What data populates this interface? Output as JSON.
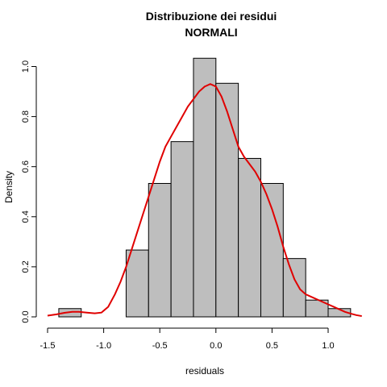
{
  "chart_data": {
    "type": "bar",
    "title_lines": [
      "Distribuzione dei residui",
      "NORMALI"
    ],
    "xlabel": "residuals",
    "ylabel": "Density",
    "xlim": [
      -1.5,
      1.3
    ],
    "ylim": [
      0,
      1.04
    ],
    "x_ticks": [
      -1.5,
      -1.0,
      -0.5,
      0.0,
      0.5,
      1.0
    ],
    "x_tick_labels": [
      "-1.5",
      "-1.0",
      "-0.5",
      "0.0",
      "0.5",
      "1.0"
    ],
    "y_ticks": [
      0.0,
      0.2,
      0.4,
      0.6,
      0.8,
      1.0
    ],
    "y_tick_labels": [
      "0.0",
      "0.2",
      "0.4",
      "0.6",
      "0.8",
      "1.0"
    ],
    "bin_edges": [
      -1.4,
      -1.2,
      -1.0,
      -0.8,
      -0.6,
      -0.4,
      -0.2,
      0.0,
      0.2,
      0.4,
      0.6,
      0.8,
      1.0,
      1.2
    ],
    "density": [
      0.033,
      0.0,
      0.0,
      0.267,
      0.533,
      0.7,
      1.033,
      0.933,
      0.633,
      0.533,
      0.233,
      0.067,
      0.033
    ],
    "bar_fill": "#bebebe",
    "bar_stroke": "#000000",
    "density_curve": {
      "color": "#e00000",
      "x": [
        -1.5,
        -1.42,
        -1.35,
        -1.28,
        -1.22,
        -1.15,
        -1.08,
        -1.02,
        -0.96,
        -0.9,
        -0.85,
        -0.8,
        -0.75,
        -0.7,
        -0.65,
        -0.6,
        -0.55,
        -0.5,
        -0.45,
        -0.4,
        -0.35,
        -0.3,
        -0.25,
        -0.2,
        -0.15,
        -0.1,
        -0.05,
        0.0,
        0.05,
        0.1,
        0.15,
        0.2,
        0.25,
        0.3,
        0.35,
        0.4,
        0.45,
        0.5,
        0.55,
        0.6,
        0.65,
        0.7,
        0.75,
        0.8,
        0.85,
        0.9,
        0.95,
        1.0,
        1.05,
        1.1,
        1.15,
        1.2,
        1.25,
        1.3
      ],
      "y": [
        0.005,
        0.01,
        0.016,
        0.02,
        0.02,
        0.017,
        0.014,
        0.017,
        0.04,
        0.09,
        0.14,
        0.2,
        0.27,
        0.34,
        0.41,
        0.48,
        0.55,
        0.62,
        0.68,
        0.72,
        0.76,
        0.8,
        0.84,
        0.87,
        0.9,
        0.92,
        0.93,
        0.92,
        0.88,
        0.82,
        0.75,
        0.68,
        0.64,
        0.61,
        0.58,
        0.54,
        0.49,
        0.43,
        0.36,
        0.28,
        0.21,
        0.15,
        0.11,
        0.09,
        0.08,
        0.07,
        0.06,
        0.05,
        0.04,
        0.03,
        0.02,
        0.013,
        0.007,
        0.003
      ]
    },
    "grid": false,
    "legend": "none"
  }
}
